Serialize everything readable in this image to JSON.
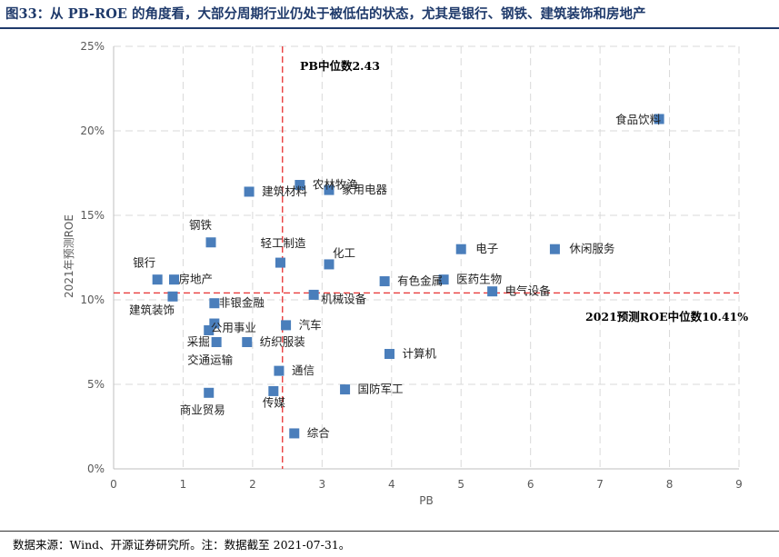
{
  "title": "图33：从 PB-ROE 的角度看，大部分周期行业仍处于被低估的状态，尤其是银行、钢铁、建筑装饰和房地产",
  "footer": "数据来源：Wind、开源证券研究所。注：数据截至 2021-07-31。",
  "colors": {
    "marker": "#4a7ebb",
    "median_line": "#e83030",
    "grid": "#d9d9d9",
    "title": "#1f3a6b"
  },
  "chart_data": {
    "type": "scatter",
    "xlabel": "PB",
    "ylabel": "2021年预测ROE",
    "xlim": [
      0,
      9
    ],
    "ylim": [
      0,
      0.25
    ],
    "x_ticks": [
      0,
      1,
      2,
      3,
      4,
      5,
      6,
      7,
      8,
      9
    ],
    "y_ticks": [
      "0%",
      "5%",
      "10%",
      "15%",
      "20%",
      "25%"
    ],
    "grid": true,
    "median_pb": 2.43,
    "median_roe": 0.1041,
    "median_pb_label": "PB中位数2.43",
    "median_roe_label": "2021预测ROE中位数10.41%",
    "points": [
      {
        "label": "食品饮料",
        "x": 7.85,
        "y": 0.207
      },
      {
        "label": "农林牧渔",
        "x": 2.68,
        "y": 0.168
      },
      {
        "label": "家用电器",
        "x": 3.1,
        "y": 0.165
      },
      {
        "label": "建筑材料",
        "x": 1.95,
        "y": 0.164
      },
      {
        "label": "钢铁",
        "x": 1.4,
        "y": 0.134
      },
      {
        "label": "电子",
        "x": 5.0,
        "y": 0.13
      },
      {
        "label": "休闲服务",
        "x": 6.35,
        "y": 0.13
      },
      {
        "label": "轻工制造",
        "x": 2.4,
        "y": 0.122
      },
      {
        "label": "化工",
        "x": 3.1,
        "y": 0.121
      },
      {
        "label": "银行",
        "x": 0.63,
        "y": 0.112
      },
      {
        "label": "房地产",
        "x": 0.87,
        "y": 0.112
      },
      {
        "label": "有色金属",
        "x": 3.9,
        "y": 0.111
      },
      {
        "label": "医药生物",
        "x": 4.75,
        "y": 0.112
      },
      {
        "label": "电气设备",
        "x": 5.45,
        "y": 0.105
      },
      {
        "label": "建筑装饰",
        "x": 0.85,
        "y": 0.102
      },
      {
        "label": "机械设备",
        "x": 2.88,
        "y": 0.103
      },
      {
        "label": "非银金融",
        "x": 1.45,
        "y": 0.098
      },
      {
        "label": "汽车",
        "x": 2.48,
        "y": 0.085
      },
      {
        "label": "公用事业",
        "x": 1.45,
        "y": 0.086
      },
      {
        "label": "采掘",
        "x": 1.37,
        "y": 0.082
      },
      {
        "label": "交通运输",
        "x": 1.48,
        "y": 0.075
      },
      {
        "label": "纺织服装",
        "x": 1.92,
        "y": 0.075
      },
      {
        "label": "计算机",
        "x": 3.97,
        "y": 0.068
      },
      {
        "label": "通信",
        "x": 2.38,
        "y": 0.058
      },
      {
        "label": "国防军工",
        "x": 3.33,
        "y": 0.047
      },
      {
        "label": "商业贸易",
        "x": 1.37,
        "y": 0.045
      },
      {
        "label": "传媒",
        "x": 2.3,
        "y": 0.046
      },
      {
        "label": "综合",
        "x": 2.6,
        "y": 0.021
      }
    ]
  }
}
